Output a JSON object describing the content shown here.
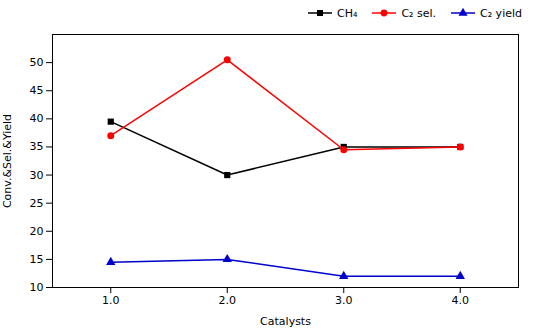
{
  "chart_data": {
    "type": "line",
    "x": [
      1,
      2,
      3,
      4
    ],
    "xlabel": "Catalysts",
    "ylabel": "Conv.&Sel.&Yield",
    "xlim": [
      0.5,
      4.5
    ],
    "xticks": [
      1,
      2,
      3,
      4
    ],
    "ylim": [
      10,
      55
    ],
    "yticks": [
      10,
      15,
      20,
      25,
      30,
      35,
      40,
      45,
      50
    ],
    "grid": false,
    "legend": "upper right",
    "series": [
      {
        "name": "CH₄",
        "color": "#000000",
        "marker": "square",
        "values": [
          39.5,
          30,
          35,
          35
        ]
      },
      {
        "name": "C₂ sel.",
        "color": "#ff0000",
        "marker": "circle",
        "values": [
          37,
          50.5,
          34.5,
          35
        ]
      },
      {
        "name": "C₂ yield",
        "color": "#0000cc",
        "marker": "triangle",
        "values": [
          14.5,
          15,
          12,
          12
        ]
      }
    ]
  }
}
